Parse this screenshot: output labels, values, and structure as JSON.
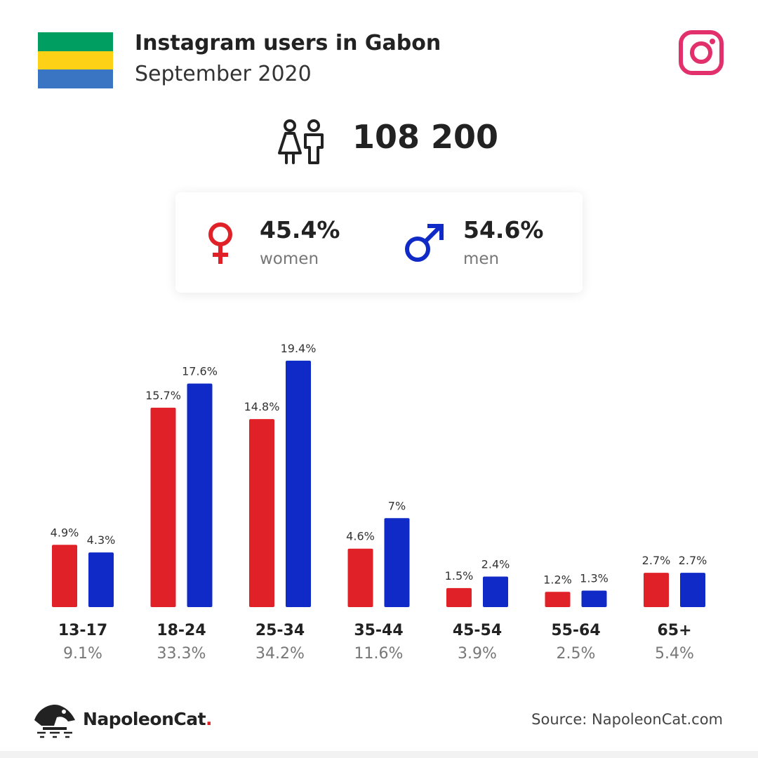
{
  "header": {
    "title": "Instagram users in Gabon",
    "subtitle": "September 2020",
    "flag_colors": [
      "#009e60",
      "#fcd116",
      "#3a75c4"
    ],
    "platform_icon": "instagram-icon"
  },
  "summary": {
    "total_icon": "people-icon",
    "total": "108 200"
  },
  "gender": {
    "women": {
      "value": "45.4%",
      "label": "women",
      "icon": "female-symbol-icon",
      "color": "#e02127"
    },
    "men": {
      "value": "54.6%",
      "label": "men",
      "icon": "male-symbol-icon",
      "color": "#0f2ac6"
    }
  },
  "chart_data": {
    "type": "bar",
    "categories": [
      "13-17",
      "18-24",
      "25-34",
      "35-44",
      "45-54",
      "55-64",
      "65+"
    ],
    "category_totals": [
      "9.1%",
      "33.3%",
      "34.2%",
      "11.6%",
      "3.9%",
      "2.5%",
      "5.4%"
    ],
    "series": [
      {
        "name": "women",
        "color": "#e02127",
        "values": [
          4.9,
          15.7,
          14.8,
          4.6,
          1.5,
          1.2,
          2.7
        ],
        "labels": [
          "4.9%",
          "15.7%",
          "14.8%",
          "4.6%",
          "1.5%",
          "1.2%",
          "2.7%"
        ]
      },
      {
        "name": "men",
        "color": "#0f2ac6",
        "values": [
          4.3,
          17.6,
          19.4,
          7,
          2.4,
          1.3,
          2.7
        ],
        "labels": [
          "4.3%",
          "17.6%",
          "19.4%",
          "7%",
          "2.4%",
          "1.3%",
          "2.7%"
        ]
      }
    ],
    "grid": false,
    "legend": "none"
  },
  "footer": {
    "logo_icon": "napoleoncat-logo-icon",
    "brand": "NapoleonCat",
    "brand_dot": ".",
    "source": "Source: NapoleonCat.com"
  }
}
